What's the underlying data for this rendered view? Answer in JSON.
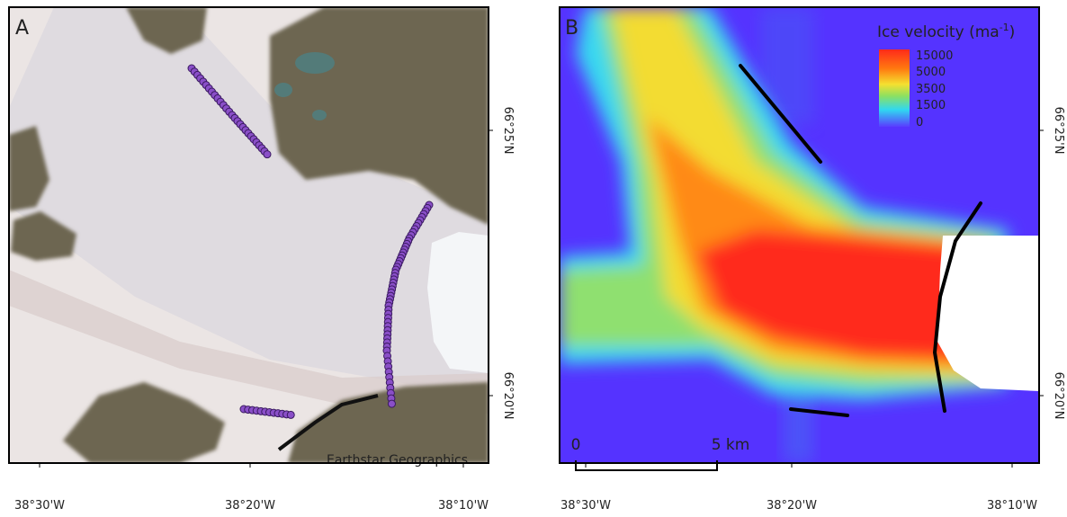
{
  "panels": [
    {
      "label": "A",
      "attribution": "Earthstar Geographics",
      "lon_ticks": [
        "38°30'W",
        "38°20'W",
        "38°10'W"
      ],
      "lat_ticks": [
        "66°25'N",
        "66°20'N"
      ]
    },
    {
      "label": "B",
      "lon_ticks": [
        "38°30'W",
        "38°20'W",
        "38°10'W"
      ],
      "lat_ticks": [
        "66°25'N",
        "66°20'N"
      ],
      "legend": {
        "title": "Ice velocity (ma",
        "title_sup": "-1",
        "title_end": ")",
        "labels": [
          "15000",
          "5000",
          "3500",
          "1500",
          "0"
        ]
      },
      "scale_bar": {
        "start": "0",
        "end": "5 km"
      }
    }
  ]
}
